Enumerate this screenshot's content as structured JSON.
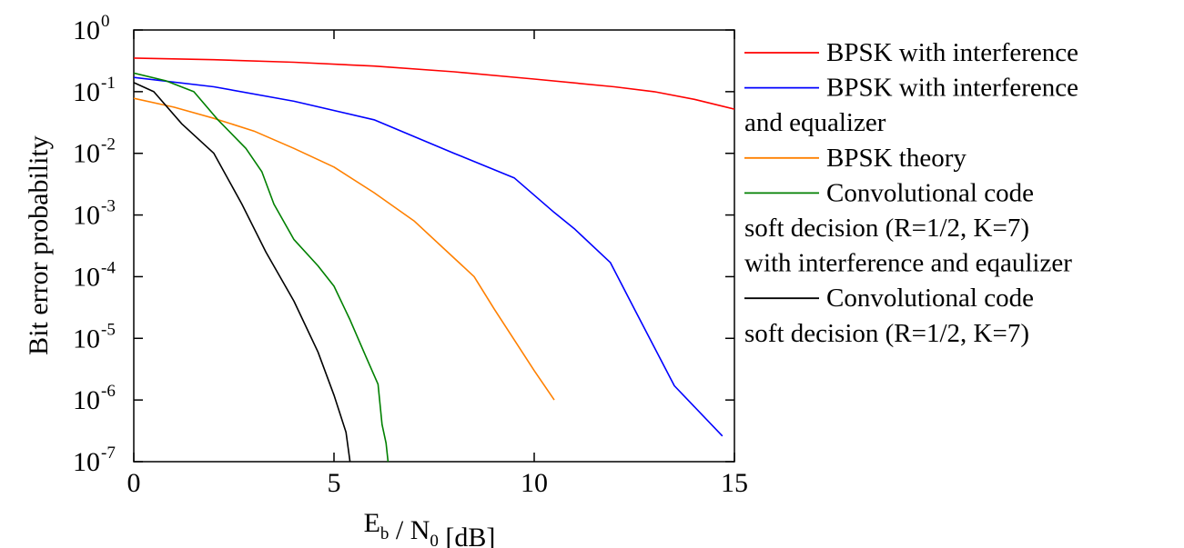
{
  "chart_data": {
    "type": "line",
    "xlabel_main": "E",
    "xlabel_sub": "b",
    "xlabel_mid": " / N",
    "xlabel_sub2": "0",
    "xlabel_unit": " [dB]",
    "ylabel": "Bit error probability",
    "xlim": [
      0,
      15
    ],
    "ylim_log10": [
      -7,
      0
    ],
    "y_scale": "log",
    "x_ticks": [
      {
        "value": 0,
        "label": "0"
      },
      {
        "value": 5,
        "label": "5"
      },
      {
        "value": 10,
        "label": "10"
      },
      {
        "value": 15,
        "label": "15"
      }
    ],
    "y_ticks": [
      {
        "exp": 0,
        "base": "10",
        "sup": "0"
      },
      {
        "exp": -1,
        "base": "10",
        "sup": "-1"
      },
      {
        "exp": -2,
        "base": "10",
        "sup": "-2"
      },
      {
        "exp": -3,
        "base": "10",
        "sup": "-3"
      },
      {
        "exp": -4,
        "base": "10",
        "sup": "-4"
      },
      {
        "exp": -5,
        "base": "10",
        "sup": "-5"
      },
      {
        "exp": -6,
        "base": "10",
        "sup": "-6"
      },
      {
        "exp": -7,
        "base": "10",
        "sup": "-7"
      }
    ],
    "legend_position": "right",
    "series": [
      {
        "name": "BPSK with interference",
        "legend_lines": [
          "BPSK with interference"
        ],
        "color": "#ff0000",
        "points": [
          [
            0,
            0.35
          ],
          [
            2,
            0.33
          ],
          [
            4,
            0.3
          ],
          [
            6,
            0.26
          ],
          [
            8,
            0.21
          ],
          [
            10,
            0.16
          ],
          [
            12,
            0.12
          ],
          [
            13,
            0.1
          ],
          [
            14,
            0.075
          ],
          [
            15,
            0.052
          ]
        ]
      },
      {
        "name": "BPSK with interference and equalizer",
        "legend_lines": [
          "BPSK with interference",
          "and equalizer"
        ],
        "color": "#0000ff",
        "points": [
          [
            0,
            0.17
          ],
          [
            2,
            0.12
          ],
          [
            4,
            0.07
          ],
          [
            6,
            0.035
          ],
          [
            8,
            0.01
          ],
          [
            9.5,
            0.004
          ],
          [
            10.5,
            0.0011
          ],
          [
            11,
            0.0006
          ],
          [
            11.9,
            0.00017
          ],
          [
            12.5,
            3e-05
          ],
          [
            13.5,
            1.7e-06
          ],
          [
            14.7,
            2.6e-07
          ]
        ]
      },
      {
        "name": "BPSK theory",
        "legend_lines": [
          "BPSK theory"
        ],
        "color": "#ff8000",
        "points": [
          [
            0,
            0.078
          ],
          [
            1,
            0.056
          ],
          [
            2,
            0.037
          ],
          [
            3,
            0.023
          ],
          [
            4,
            0.012
          ],
          [
            5,
            0.006
          ],
          [
            6,
            0.0023
          ],
          [
            7,
            0.0008
          ],
          [
            8,
            0.0002
          ],
          [
            8.5,
            0.0001
          ],
          [
            9,
            3e-05
          ],
          [
            10,
            3e-06
          ],
          [
            10.5,
            1e-06
          ]
        ]
      },
      {
        "name": "Convolutional code soft decision (R=1/2, K=7) with interference and eqaulizer",
        "legend_lines": [
          " Convolutional code",
          "soft decision (R=1/2, K=7)",
          "with interference and eqaulizer"
        ],
        "color": "#008000",
        "points": [
          [
            0,
            0.2
          ],
          [
            0.8,
            0.15
          ],
          [
            1.5,
            0.1
          ],
          [
            2.1,
            0.035
          ],
          [
            2.8,
            0.012
          ],
          [
            3.2,
            0.005
          ],
          [
            3.5,
            0.0015
          ],
          [
            4.0,
            0.0004
          ],
          [
            4.6,
            0.00015
          ],
          [
            5.0,
            7e-05
          ],
          [
            5.4,
            2e-05
          ],
          [
            5.8,
            5e-06
          ],
          [
            6.1,
            1.8e-06
          ],
          [
            6.2,
            4e-07
          ],
          [
            6.3,
            2e-07
          ],
          [
            6.35,
            1e-07
          ]
        ]
      },
      {
        "name": "Convolutional code soft decision (R=1/2, K=7)",
        "legend_lines": [
          "Convolutional code",
          "soft decision (R=1/2, K=7)"
        ],
        "color": "#000000",
        "points": [
          [
            0,
            0.14
          ],
          [
            0.5,
            0.1
          ],
          [
            1.2,
            0.03
          ],
          [
            2.0,
            0.01
          ],
          [
            2.7,
            0.0015
          ],
          [
            3.3,
            0.00025
          ],
          [
            4.0,
            4e-05
          ],
          [
            4.6,
            6e-06
          ],
          [
            5.0,
            1.2e-06
          ],
          [
            5.3,
            3e-07
          ],
          [
            5.4,
            1e-07
          ]
        ]
      }
    ]
  }
}
